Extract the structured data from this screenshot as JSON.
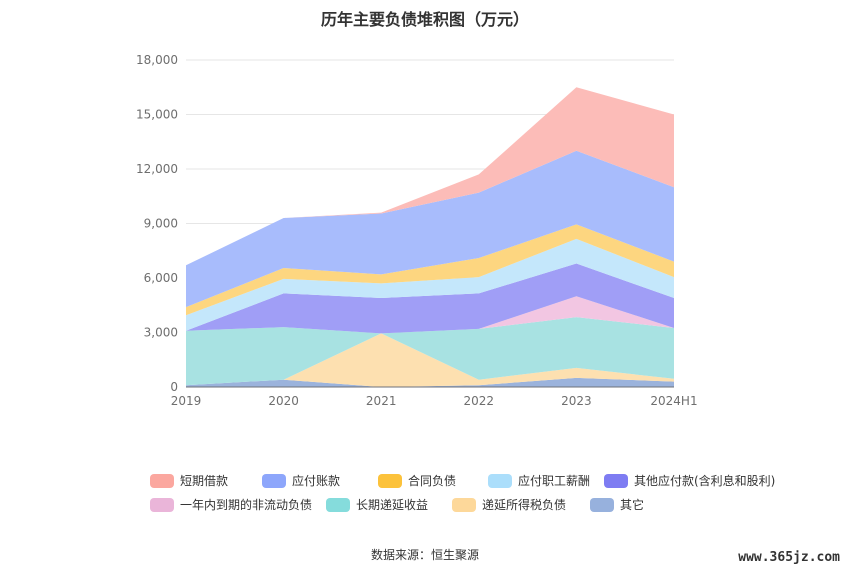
{
  "chart_data": {
    "type": "area",
    "stacked": true,
    "title": "历年主要负债堆积图（万元）",
    "categories": [
      "2019",
      "2020",
      "2021",
      "2022",
      "2023",
      "2024H1"
    ],
    "ylim": [
      0,
      18000
    ],
    "yticks": [
      "0",
      "3,000",
      "6,000",
      "9,000",
      "12,000",
      "15,000",
      "18,000"
    ],
    "ytick_values": [
      0,
      3000,
      6000,
      9000,
      12000,
      15000,
      18000
    ],
    "grid": true,
    "legend_position": "bottom",
    "series": [
      {
        "name": "其它",
        "color": "#9bb3dc",
        "values": [
          100,
          400,
          0,
          100,
          500,
          300
        ]
      },
      {
        "name": "递延所得税负债",
        "color": "#fde0b0",
        "values": [
          0,
          0,
          2950,
          300,
          550,
          150
        ]
      },
      {
        "name": "长期递延收益",
        "color": "#a8e2e2",
        "values": [
          3000,
          2900,
          0,
          2800,
          2800,
          2800
        ]
      },
      {
        "name": "一年内到期的非流动负债",
        "color": "#f2c6e2",
        "values": [
          0,
          0,
          0,
          0,
          1150,
          0
        ]
      },
      {
        "name": "其他应付款(含利息和股利)",
        "color": "#a09ef6",
        "values": [
          0,
          1850,
          1950,
          1950,
          1800,
          1650
        ]
      },
      {
        "name": "应付职工薪酬",
        "color": "#c4e7fb",
        "values": [
          850,
          800,
          800,
          900,
          1350,
          1150
        ]
      },
      {
        "name": "合同负债",
        "color": "#fdd680",
        "values": [
          450,
          600,
          500,
          1050,
          800,
          850
        ]
      },
      {
        "name": "应付账款",
        "color": "#a8bcfc",
        "values": [
          2300,
          2750,
          3350,
          3600,
          4050,
          4100
        ]
      },
      {
        "name": "短期借款",
        "color": "#fcbcb8",
        "values": [
          0,
          0,
          50,
          1000,
          3500,
          4000
        ]
      }
    ]
  },
  "legend": [
    {
      "label": "短期借款",
      "color": "#fba79f"
    },
    {
      "label": "应付账款",
      "color": "#8da6fb"
    },
    {
      "label": "合同负债",
      "color": "#fcc23b"
    },
    {
      "label": "应付职工薪酬",
      "color": "#abdefb"
    },
    {
      "label": "其他应付款(含利息和股利)",
      "color": "#7e7cf2"
    },
    {
      "label": "一年内到期的非流动负债",
      "color": "#eab5d9"
    },
    {
      "label": "长期递延收益",
      "color": "#85dcdc"
    },
    {
      "label": "递延所得税负债",
      "color": "#fdd89a"
    },
    {
      "label": "其它",
      "color": "#97b1dd"
    }
  ],
  "source": "数据来源：恒生聚源",
  "watermark": "www.365jz.com"
}
